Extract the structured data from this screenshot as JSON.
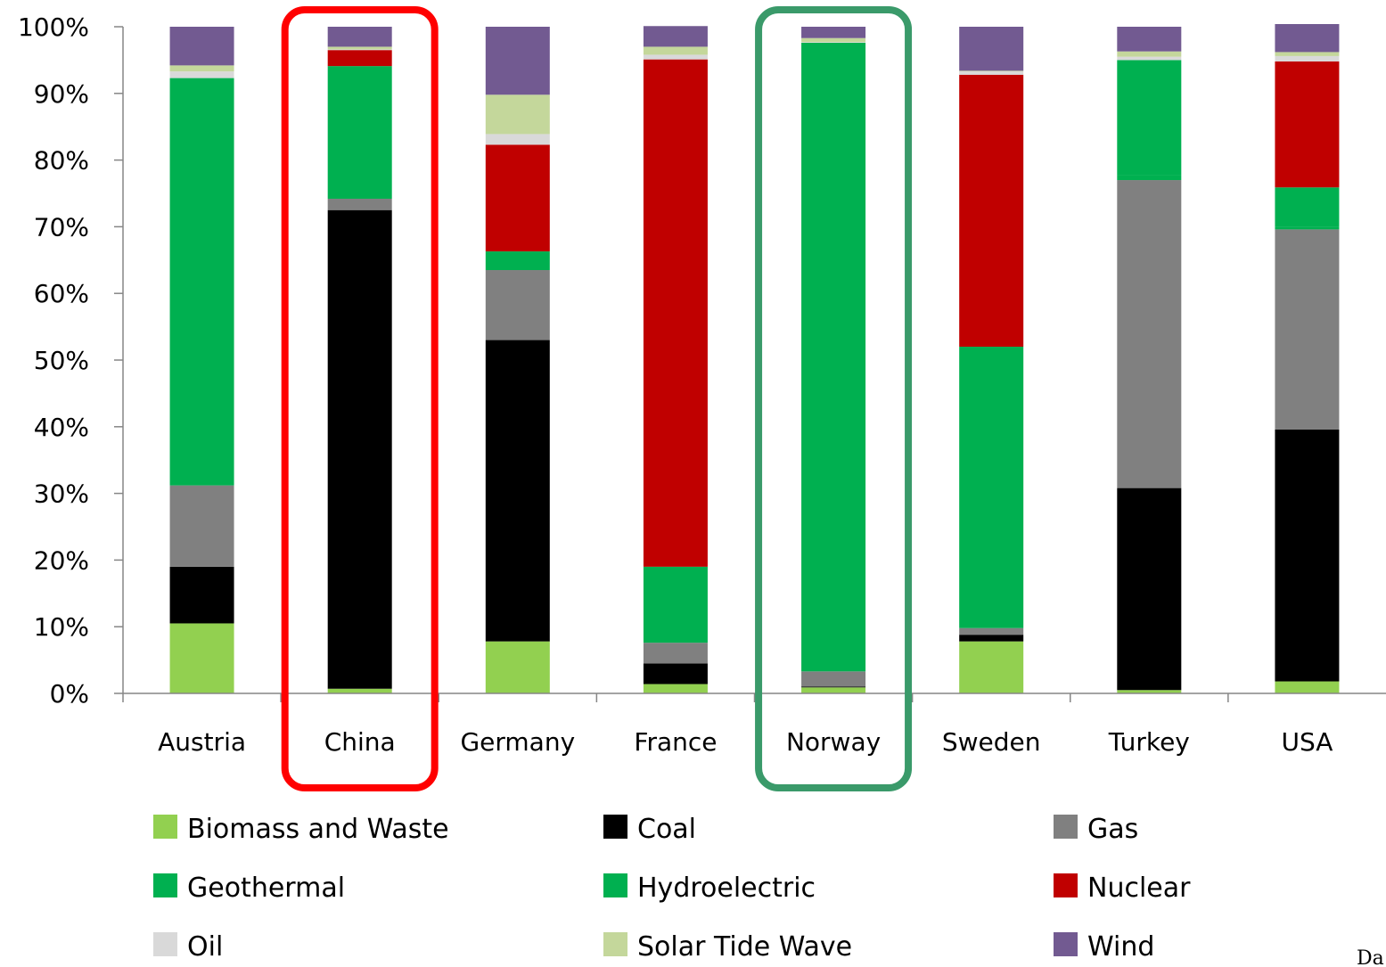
{
  "chart_data": {
    "type": "bar",
    "stacked": true,
    "title": "",
    "xlabel": "",
    "ylabel": "",
    "ylim": [
      0,
      100
    ],
    "y_ticks": [
      "0%",
      "10%",
      "20%",
      "30%",
      "40%",
      "50%",
      "60%",
      "70%",
      "80%",
      "90%",
      "100%"
    ],
    "categories": [
      "Austria",
      "China",
      "Germany",
      "France",
      "Norway",
      "Sweden",
      "Turkey",
      "USA"
    ],
    "series": [
      {
        "name": "Biomass and Waste",
        "color": "#92d050",
        "values": [
          10.5,
          0.7,
          7.8,
          1.4,
          0.9,
          7.8,
          0.5,
          1.8
        ]
      },
      {
        "name": "Coal",
        "color": "#000000",
        "values": [
          8.5,
          71.8,
          45.2,
          3.1,
          0.1,
          1.0,
          30.3,
          37.8
        ]
      },
      {
        "name": "Gas",
        "color": "#808080",
        "values": [
          12.2,
          1.7,
          10.5,
          3.1,
          2.3,
          1.0,
          46.2,
          30.0
        ]
      },
      {
        "name": "Geothermal",
        "color": "#00b050",
        "values": [
          0.0,
          0.0,
          0.0,
          0.0,
          0.0,
          0.0,
          0.8,
          0.4
        ]
      },
      {
        "name": "Hydroelectric",
        "color": "#00b050",
        "values": [
          61.1,
          19.9,
          2.8,
          11.4,
          94.3,
          42.2,
          17.2,
          5.9
        ]
      },
      {
        "name": "Nuclear",
        "color": "#c00000",
        "values": [
          0.0,
          2.4,
          16.0,
          76.1,
          0.0,
          40.8,
          0.0,
          18.9
        ]
      },
      {
        "name": "Oil",
        "color": "#d9d9d9",
        "values": [
          1.0,
          0.1,
          1.6,
          0.7,
          0.1,
          0.5,
          0.5,
          0.8
        ]
      },
      {
        "name": "Solar Tide Wave",
        "color": "#c4d79b",
        "values": [
          0.9,
          0.4,
          5.9,
          1.2,
          0.6,
          0.1,
          0.8,
          0.6
        ]
      },
      {
        "name": "Wind",
        "color": "#725a91",
        "values": [
          5.8,
          3.0,
          10.2,
          3.1,
          1.7,
          6.6,
          3.7,
          4.2
        ]
      }
    ],
    "highlights": [
      {
        "category": "China",
        "color": "#ff0000"
      },
      {
        "category": "Norway",
        "color": "#3a9a6a"
      }
    ],
    "legend_position": "bottom",
    "grid": false
  },
  "caption_fragment": "Da"
}
